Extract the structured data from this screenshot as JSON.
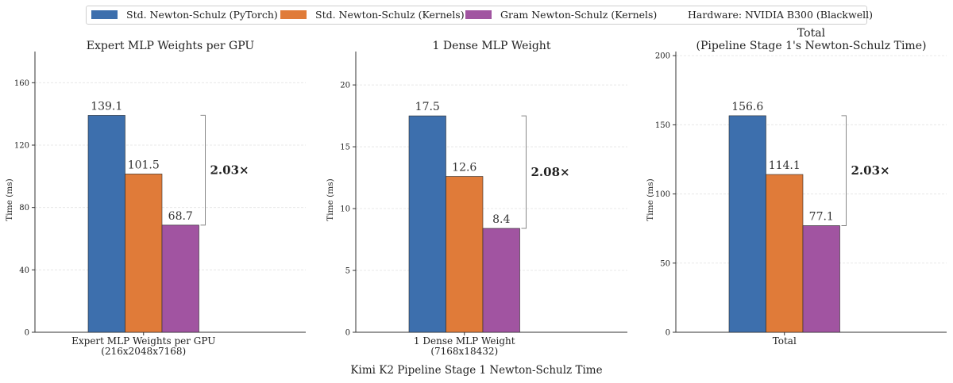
{
  "legend": {
    "items": [
      {
        "label": "Std. Newton-Schulz (PyTorch)",
        "color": "#3d6fad"
      },
      {
        "label": "Std. Newton-Schulz (Kernels)",
        "color": "#e07b39"
      },
      {
        "label": "Gram Newton-Schulz (Kernels)",
        "color": "#a154a1"
      }
    ],
    "hardware": "Hardware: NVIDIA B300 (Blackwell)"
  },
  "footer_title": "Kimi K2 Pipeline Stage 1 Newton-Schulz Time",
  "chart_data": [
    {
      "type": "bar",
      "title": "Expert MLP Weights per GPU",
      "ylabel": "Time (ms)",
      "categories": [
        "Expert MLP Weights per GPU\n(216x2048x7168)"
      ],
      "series": [
        {
          "name": "Std. Newton-Schulz (PyTorch)",
          "values": [
            139.1
          ]
        },
        {
          "name": "Std. Newton-Schulz (Kernels)",
          "values": [
            101.5
          ]
        },
        {
          "name": "Gram Newton-Schulz (Kernels)",
          "values": [
            68.7
          ]
        }
      ],
      "value_labels": [
        "139.1",
        "101.5",
        "68.7"
      ],
      "yticks": [
        0,
        40,
        80,
        120,
        160
      ],
      "ylim": [
        0,
        180
      ],
      "speedup": "2.03×"
    },
    {
      "type": "bar",
      "title": "1 Dense MLP Weight",
      "ylabel": "Time (ms)",
      "categories": [
        "1 Dense MLP Weight\n(7168x18432)"
      ],
      "series": [
        {
          "name": "Std. Newton-Schulz (PyTorch)",
          "values": [
            17.5
          ]
        },
        {
          "name": "Std. Newton-Schulz (Kernels)",
          "values": [
            12.6
          ]
        },
        {
          "name": "Gram Newton-Schulz (Kernels)",
          "values": [
            8.4
          ]
        }
      ],
      "value_labels": [
        "17.5",
        "12.6",
        "8.4"
      ],
      "yticks": [
        0,
        5,
        10,
        15,
        20
      ],
      "ylim": [
        0,
        22.7
      ],
      "speedup": "2.08×"
    },
    {
      "type": "bar",
      "title": "Total\n(Pipeline Stage 1's Newton-Schulz Time)",
      "ylabel": "Time (ms)",
      "categories": [
        "Total"
      ],
      "series": [
        {
          "name": "Std. Newton-Schulz (PyTorch)",
          "values": [
            156.6
          ]
        },
        {
          "name": "Std. Newton-Schulz (Kernels)",
          "values": [
            114.1
          ]
        },
        {
          "name": "Gram Newton-Schulz (Kernels)",
          "values": [
            77.1
          ]
        }
      ],
      "value_labels": [
        "156.6",
        "114.1",
        "77.1"
      ],
      "yticks": [
        0,
        50,
        100,
        150,
        200
      ],
      "ylim": [
        0,
        203
      ],
      "speedup": "2.03×"
    }
  ]
}
